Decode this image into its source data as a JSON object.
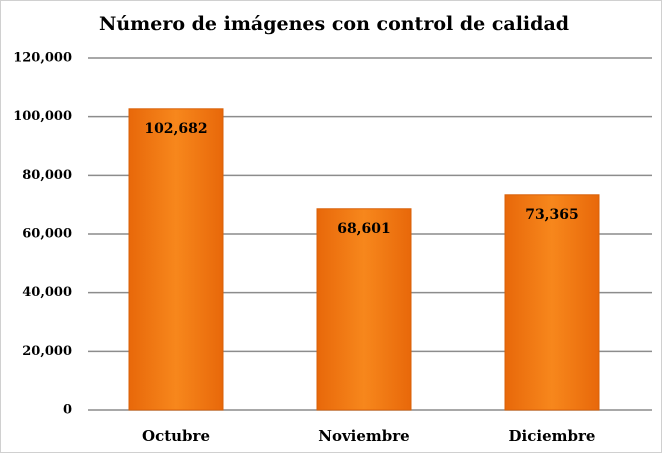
{
  "chart_data": {
    "type": "bar",
    "title": "Número de imágenes con control de calidad",
    "categories": [
      "Octubre",
      "Noviembre",
      "Diciembre"
    ],
    "values": [
      102682,
      68601,
      73365
    ],
    "value_labels": [
      "102,682",
      "68,601",
      "73,365"
    ],
    "color": "#f07810",
    "ylim": [
      0,
      120000
    ],
    "yticks": [
      0,
      {
        "value": 20000,
        "label": "20,000"
      },
      {
        "value": 40000,
        "label": "40,000"
      },
      {
        "value": 60000,
        "label": "60,000"
      },
      {
        "value": 80000,
        "label": "80,000"
      },
      {
        "value": 100000,
        "label": "100,000"
      },
      {
        "value": 120000,
        "label": "120,000"
      }
    ],
    "grid": true
  }
}
